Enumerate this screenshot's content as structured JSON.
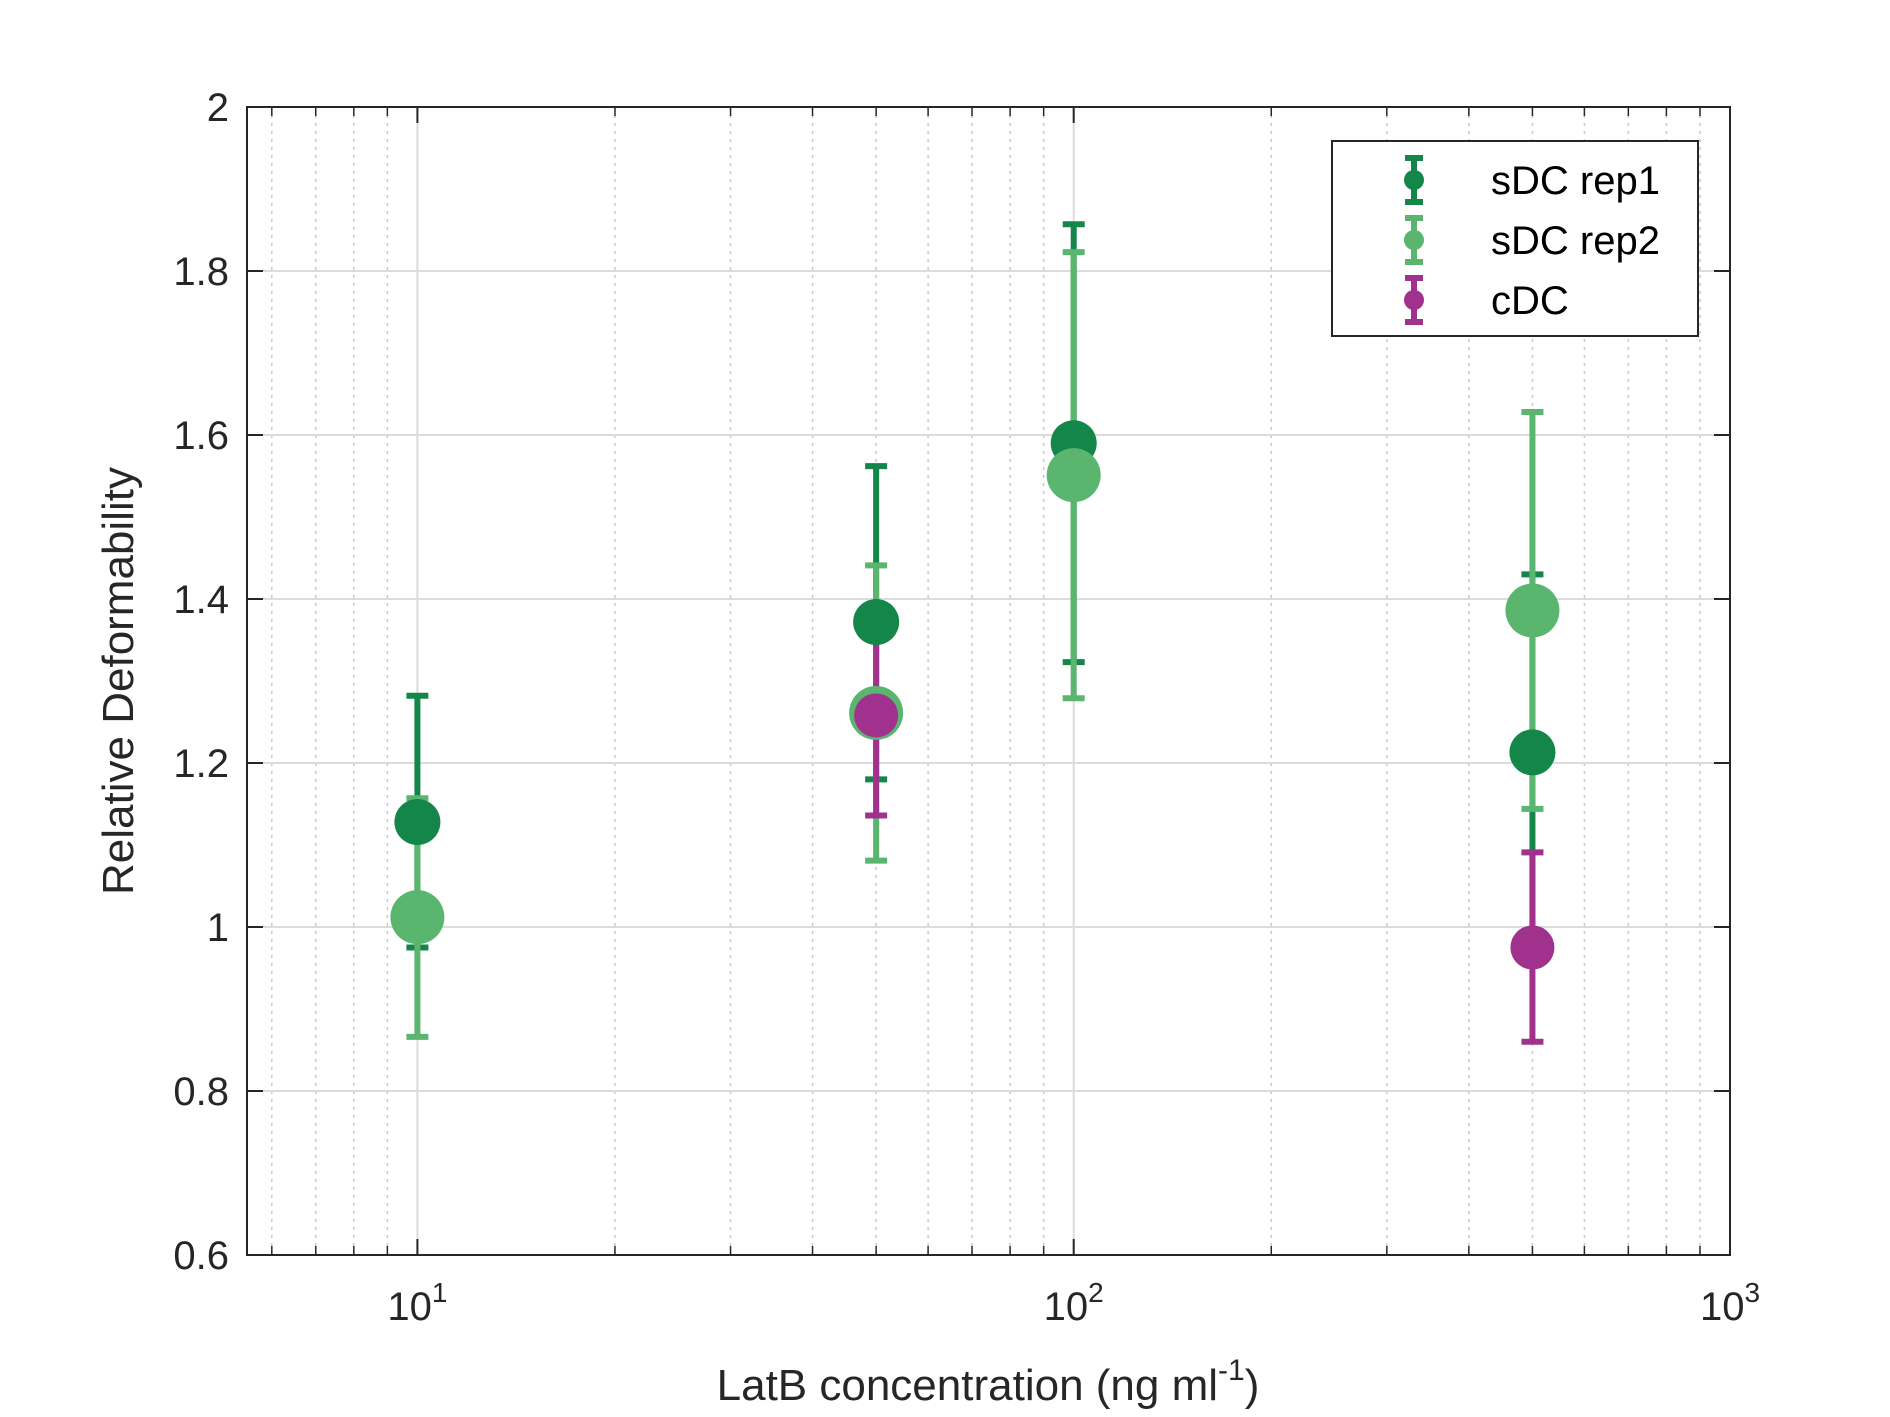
{
  "chart_data": {
    "type": "scatter",
    "xlabel_main": "LatB concentration (ng ml",
    "xlabel_sup": "-1",
    "xlabel_close": ")",
    "ylabel": "Relative Deformability",
    "xscale": "log",
    "xlim": [
      5.5,
      1000
    ],
    "ylim": [
      0.6,
      2
    ],
    "grid": true,
    "minor_grid": true,
    "legend_position": "top-right",
    "yticks": [
      "0.6",
      "0.8",
      "1",
      "1.2",
      "1.4",
      "1.6",
      "1.8",
      "2"
    ],
    "xticks": [
      {
        "base": "10",
        "exp": "1",
        "value": 10
      },
      {
        "base": "10",
        "exp": "2",
        "value": 100
      },
      {
        "base": "10",
        "exp": "3",
        "value": 1000
      }
    ],
    "series": [
      {
        "name": "sDC rep1",
        "color": "#14864a",
        "points": [
          {
            "x": 10,
            "y": 1.128,
            "lo": 0.975,
            "hi": 1.282
          },
          {
            "x": 50,
            "y": 1.372,
            "lo": 1.18,
            "hi": 1.562
          },
          {
            "x": 100,
            "y": 1.59,
            "lo": 1.323,
            "hi": 1.857
          },
          {
            "x": 500,
            "y": 1.213,
            "lo": 0.995,
            "hi": 1.43
          }
        ]
      },
      {
        "name": "sDC rep2",
        "color": "#5ab56e",
        "points": [
          {
            "x": 10,
            "y": 1.012,
            "lo": 0.866,
            "hi": 1.157
          },
          {
            "x": 50,
            "y": 1.261,
            "lo": 1.081,
            "hi": 1.441
          },
          {
            "x": 100,
            "y": 1.551,
            "lo": 1.279,
            "hi": 1.823
          },
          {
            "x": 500,
            "y": 1.386,
            "lo": 1.144,
            "hi": 1.628
          }
        ]
      },
      {
        "name": "cDC",
        "color": "#a0328e",
        "points": [
          {
            "x": 50,
            "y": 1.258,
            "lo": 1.136,
            "hi": 1.381
          },
          {
            "x": 500,
            "y": 0.975,
            "lo": 0.86,
            "hi": 1.091
          }
        ]
      }
    ]
  }
}
